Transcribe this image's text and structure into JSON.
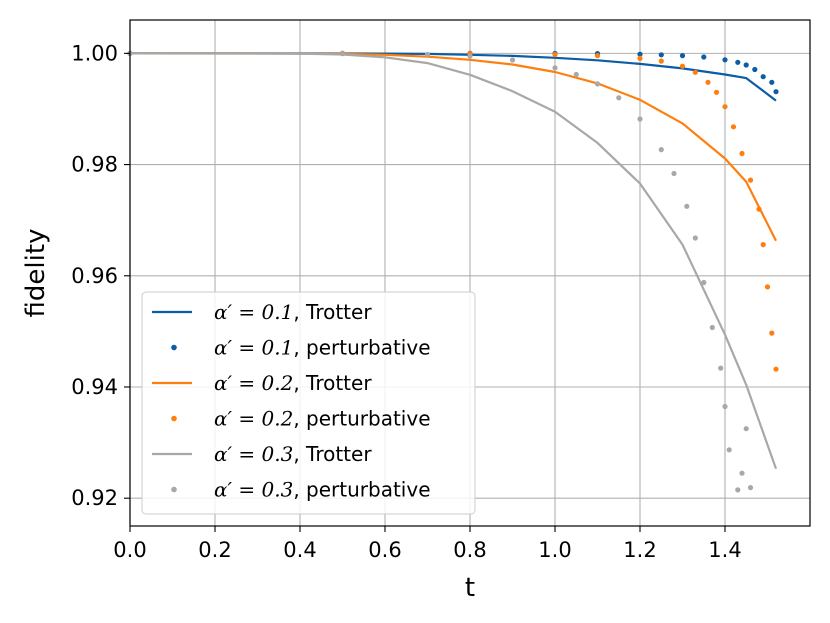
{
  "chart_data": {
    "type": "line",
    "title": "",
    "xlabel": "t",
    "ylabel": "fidelity",
    "xlim": [
      0.0,
      1.6
    ],
    "ylim": [
      0.915,
      1.006
    ],
    "grid": true,
    "legend_position": "bottom-left",
    "x_ticks": [
      0.0,
      0.2,
      0.4,
      0.6,
      0.8,
      1.0,
      1.2,
      1.4
    ],
    "x_tick_labels": [
      "0.0",
      "0.2",
      "0.4",
      "0.6",
      "0.8",
      "1.0",
      "1.2",
      "1.4"
    ],
    "y_ticks": [
      0.92,
      0.94,
      0.96,
      0.98,
      1.0
    ],
    "y_tick_labels": [
      "0.92",
      "0.94",
      "0.96",
      "0.98",
      "1.00"
    ],
    "series": [
      {
        "name": "α′ = 0.1, Trotter",
        "legend_math": "α′ = 0.1",
        "legend_suffix": ", Trotter",
        "style": "line",
        "color": "#0c5da5",
        "x": [
          0.0,
          0.4,
          0.6,
          0.7,
          0.8,
          0.9,
          1.0,
          1.1,
          1.2,
          1.3,
          1.4,
          1.45,
          1.52
        ],
        "y": [
          1.0,
          1.0,
          0.99995,
          0.9999,
          0.99975,
          0.99955,
          0.9992,
          0.99875,
          0.9981,
          0.9973,
          0.9962,
          0.99555,
          0.9915
        ]
      },
      {
        "name": "α′ = 0.1, perturbative",
        "legend_math": "α′ = 0.1",
        "legend_suffix": ", perturbative",
        "style": "dots",
        "color": "#0c5da5",
        "x": [
          0.0,
          0.5,
          0.8,
          1.0,
          1.1,
          1.2,
          1.25,
          1.3,
          1.35,
          1.4,
          1.43,
          1.45,
          1.47,
          1.49,
          1.51,
          1.52
        ],
        "y": [
          1.0,
          1.0,
          1.0,
          0.99998,
          0.99995,
          0.99985,
          0.99975,
          0.9996,
          0.99935,
          0.99885,
          0.9984,
          0.9979,
          0.9971,
          0.9958,
          0.9948,
          0.9931
        ]
      },
      {
        "name": "α′ = 0.2, Trotter",
        "legend_math": "α′ = 0.2",
        "legend_suffix": ", Trotter",
        "style": "line",
        "color": "#ff7f0e",
        "x": [
          0.0,
          0.3,
          0.5,
          0.6,
          0.7,
          0.8,
          0.9,
          1.0,
          1.1,
          1.2,
          1.3,
          1.4,
          1.45,
          1.52
        ],
        "y": [
          1.0,
          0.99998,
          0.9999,
          0.99975,
          0.9994,
          0.99885,
          0.998,
          0.99665,
          0.9946,
          0.99165,
          0.9874,
          0.9811,
          0.9769,
          0.9663
        ]
      },
      {
        "name": "α′ = 0.2, perturbative",
        "legend_math": "α′ = 0.2",
        "legend_suffix": ", perturbative",
        "style": "dots",
        "color": "#ff7f0e",
        "x": [
          0.0,
          0.5,
          0.8,
          1.0,
          1.1,
          1.2,
          1.25,
          1.3,
          1.33,
          1.36,
          1.38,
          1.4,
          1.42,
          1.44,
          1.46,
          1.48,
          1.49,
          1.5,
          1.51,
          1.52
        ],
        "y": [
          1.0,
          1.0,
          0.99995,
          0.9998,
          0.9996,
          0.9991,
          0.9986,
          0.9977,
          0.9966,
          0.9948,
          0.993,
          0.9904,
          0.9868,
          0.982,
          0.9772,
          0.972,
          0.9656,
          0.958,
          0.9497,
          0.9432
        ]
      },
      {
        "name": "α′ = 0.3, Trotter",
        "legend_math": "α′ = 0.3",
        "legend_suffix": ", Trotter",
        "style": "line",
        "color": "#a8a8a8",
        "x": [
          0.0,
          0.4,
          0.5,
          0.6,
          0.7,
          0.8,
          0.9,
          1.0,
          1.1,
          1.2,
          1.3,
          1.4,
          1.45,
          1.52
        ],
        "y": [
          1.0,
          0.99995,
          0.9998,
          0.9993,
          0.99825,
          0.99615,
          0.9932,
          0.9895,
          0.9839,
          0.9766,
          0.9656,
          0.9494,
          0.9404,
          0.9253
        ]
      },
      {
        "name": "α′ = 0.3, perturbative",
        "legend_math": "α′ = 0.3",
        "legend_suffix": ", perturbative",
        "style": "dots",
        "color": "#a8a8a8",
        "x": [
          0.0,
          0.5,
          0.7,
          0.8,
          0.9,
          1.0,
          1.05,
          1.1,
          1.15,
          1.2,
          1.25,
          1.28,
          1.31,
          1.33,
          1.35,
          1.37,
          1.39,
          1.4,
          1.41,
          1.43,
          1.44,
          1.45,
          1.46
        ],
        "y": [
          1.0,
          0.99995,
          0.9998,
          0.9995,
          0.9988,
          0.9974,
          0.9962,
          0.9945,
          0.992,
          0.9882,
          0.9827,
          0.9784,
          0.9725,
          0.9668,
          0.9588,
          0.9507,
          0.9434,
          0.9365,
          0.9287,
          0.9215,
          0.9245,
          0.9325,
          0.9219
        ]
      }
    ]
  }
}
